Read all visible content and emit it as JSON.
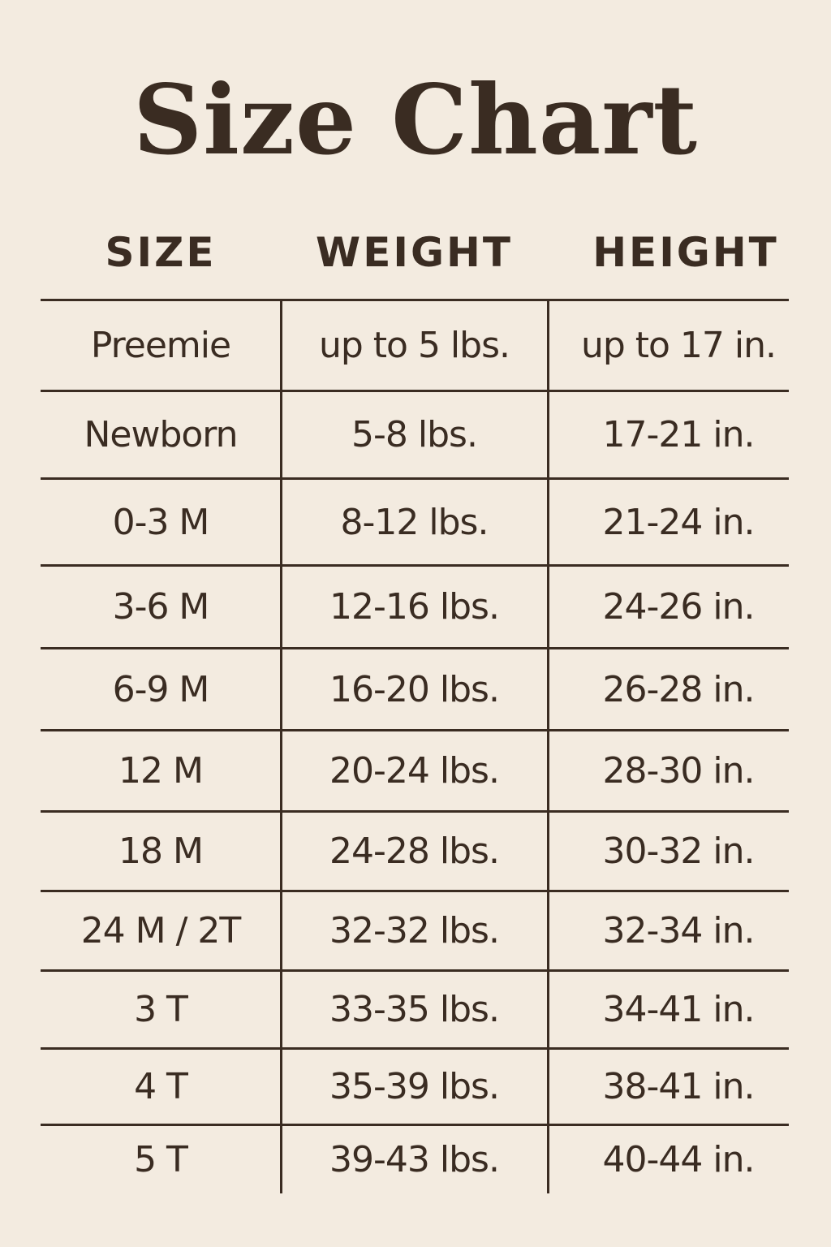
{
  "title": "Size Chart",
  "columns": [
    "SIZE",
    "WEIGHT",
    "HEIGHT"
  ],
  "rows": [
    [
      "Preemie",
      "up to 5 lbs.",
      "up to 17 in."
    ],
    [
      "Newborn",
      "5-8 lbs.",
      "17-21 in."
    ],
    [
      "0-3 M",
      "8-12 lbs.",
      "21-24 in."
    ],
    [
      "3-6 M",
      "12-16 lbs.",
      "24-26 in."
    ],
    [
      "6-9 M",
      "16-20 lbs.",
      "26-28 in."
    ],
    [
      "12 M",
      "20-24 lbs.",
      "28-30 in."
    ],
    [
      "18 M",
      "24-28 lbs.",
      "30-32 in."
    ],
    [
      "24 M / 2T",
      "32-32 lbs.",
      "32-34 in."
    ],
    [
      "3 T",
      "33-35 lbs.",
      "34-41 in."
    ],
    [
      "4 T",
      "35-39 lbs.",
      "38-41 in."
    ],
    [
      "5 T",
      "39-43 lbs.",
      "40-44 in."
    ]
  ],
  "colors": {
    "background": "#f3ebe0",
    "text": "#3a2c22"
  }
}
